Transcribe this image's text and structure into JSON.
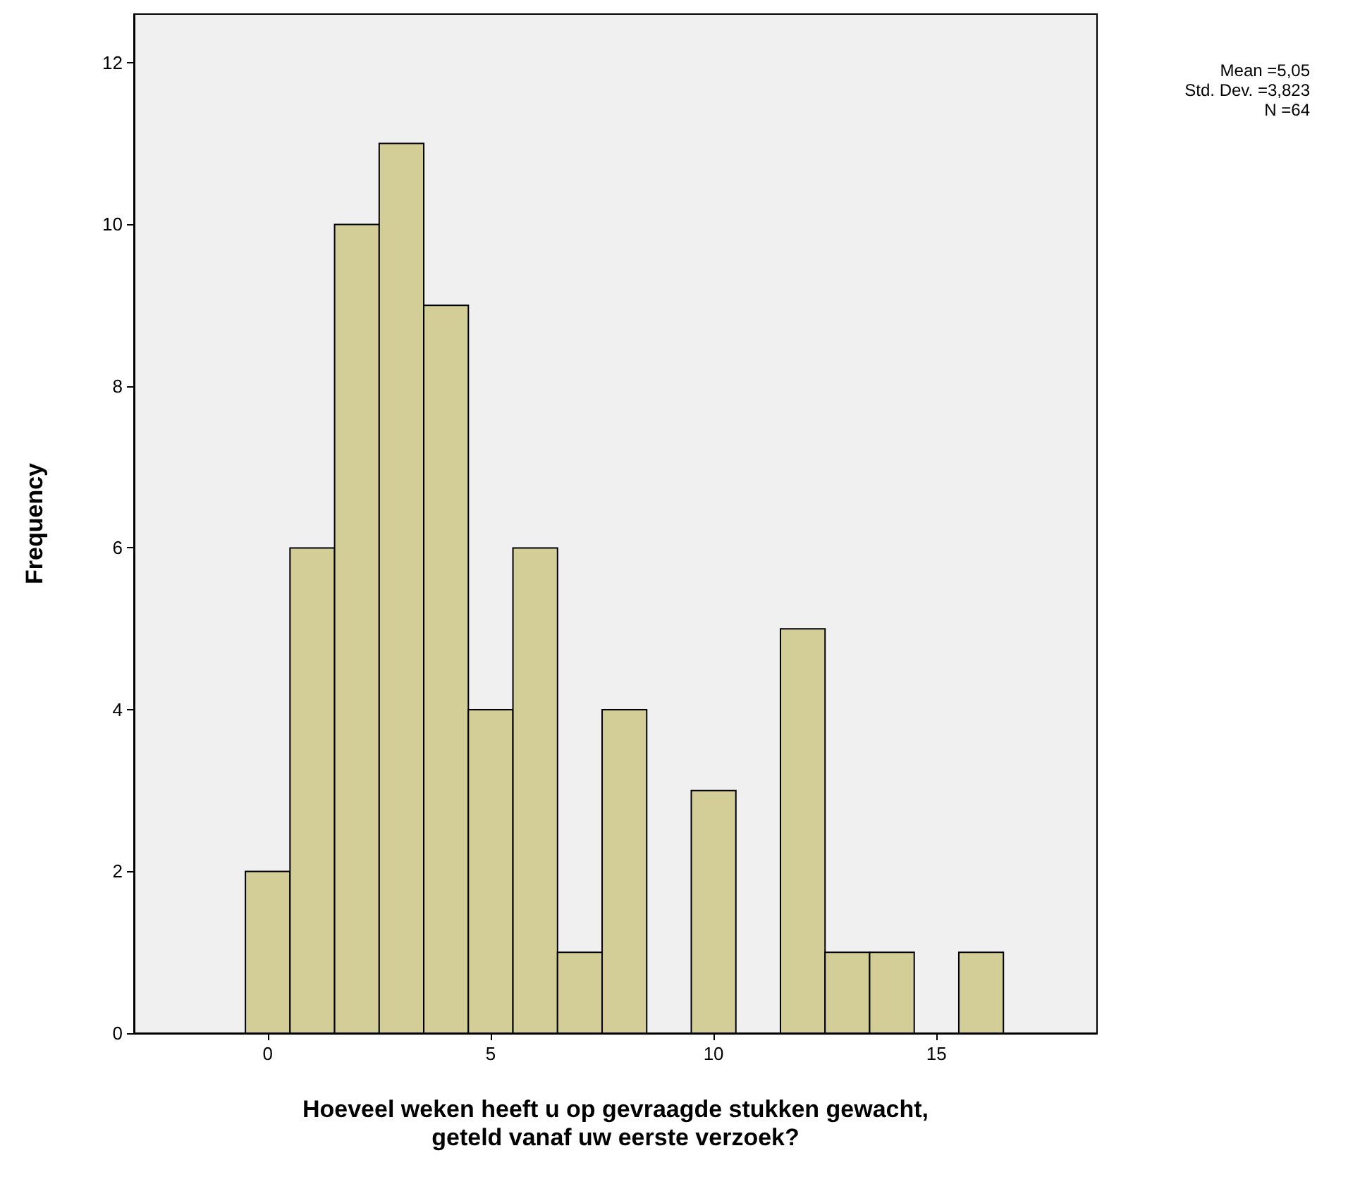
{
  "chart_data": {
    "type": "histogram",
    "xlabel": "Hoeveel weken heeft u op gevraagde stukken gewacht,\ngeteld vanaf uw eerste verzoek?",
    "ylabel": "Frequency",
    "bins": [
      -0.5,
      0.5,
      1.5,
      2.5,
      3.5,
      4.5,
      5.5,
      6.5,
      7.5,
      8.5,
      9.5,
      10.5,
      11.5,
      12.5,
      13.5,
      14.5,
      15.5,
      16.5
    ],
    "values": [
      2,
      6,
      10,
      11,
      9,
      4,
      6,
      1,
      4,
      0,
      3,
      0,
      5,
      1,
      1,
      0,
      1
    ],
    "color": "#d3ce97",
    "xlim": [
      -3,
      18.6
    ],
    "xticks": [
      0,
      5,
      10,
      15
    ],
    "ylim": [
      0,
      12.6
    ],
    "yticks": [
      0,
      2,
      4,
      6,
      8,
      10,
      12
    ],
    "grid": false,
    "annotations": [
      "Mean =5,05",
      "Std. Dev. =3,823",
      "N =64"
    ]
  }
}
